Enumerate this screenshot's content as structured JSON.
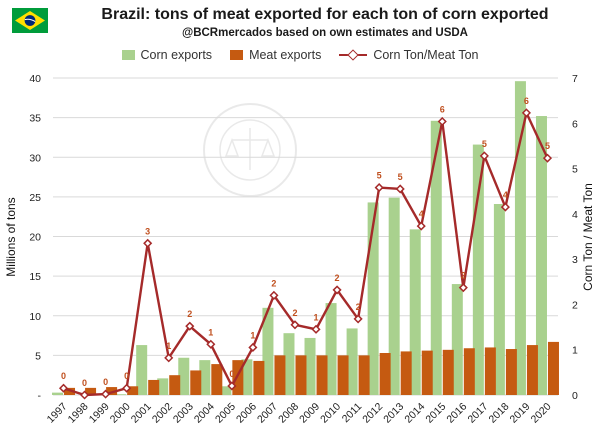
{
  "chart_data": {
    "type": "bar",
    "title": "Brazil: tons of meat exported for each ton of corn exported",
    "subtitle": "@BCRmercados based on own estimates and USDA",
    "ylabel": "Millions of tons",
    "y2label": "Corn Ton / Meat Ton",
    "ylim": [
      0,
      40
    ],
    "y2lim": [
      0,
      7
    ],
    "grid": true,
    "legend_position": "top",
    "categories": [
      "1997",
      "1998",
      "1999",
      "2000",
      "2001",
      "2002",
      "2003",
      "2004",
      "2005",
      "2006",
      "2007",
      "2008",
      "2009",
      "2010",
      "2011",
      "2012",
      "2013",
      "2014",
      "2015",
      "2016",
      "2017",
      "2018",
      "2019",
      "2020"
    ],
    "series": [
      {
        "name": "Corn exports",
        "kind": "bar",
        "color": "#a9d18e",
        "values": [
          0.3,
          0.0,
          0.1,
          0.1,
          6.3,
          2.1,
          4.7,
          4.4,
          1.1,
          4.5,
          11.0,
          7.8,
          7.2,
          11.6,
          8.4,
          24.3,
          24.9,
          20.9,
          34.6,
          14.0,
          31.6,
          24.1,
          39.6,
          35.2
        ]
      },
      {
        "name": "Meat exports",
        "kind": "bar",
        "color": "#c55a11",
        "values": [
          0.9,
          0.9,
          1.0,
          1.1,
          1.9,
          2.5,
          3.1,
          3.9,
          4.4,
          4.3,
          5.0,
          5.0,
          5.0,
          5.0,
          5.0,
          5.3,
          5.5,
          5.6,
          5.7,
          5.9,
          6.0,
          5.8,
          6.3,
          6.7
        ]
      },
      {
        "name": "Corn Ton/Meat Ton",
        "kind": "line",
        "axis": "right",
        "color": "#a52a2a",
        "values": [
          0.15,
          0.0,
          0.02,
          0.15,
          3.35,
          0.82,
          1.52,
          1.12,
          0.2,
          1.05,
          2.2,
          1.55,
          1.45,
          2.32,
          1.68,
          4.58,
          4.55,
          3.73,
          6.04,
          2.37,
          5.28,
          4.15,
          6.23,
          5.23
        ]
      }
    ],
    "point_labels": [
      "0",
      "0",
      "0",
      "0",
      "3",
      "1",
      "2",
      "1",
      "0",
      "1",
      "2",
      "2",
      "1",
      "2",
      "2",
      "5",
      "5",
      "4",
      "6",
      "2",
      "5",
      "4",
      "6",
      "5"
    ],
    "colors": {
      "corn": "#a9d18e",
      "meat": "#c55a11",
      "line": "#a52a2a",
      "labels": "#c0501f",
      "grid": "#d9d9d9"
    },
    "flag": "brazil-flag-icon",
    "watermark": "BOLSA DE COMERCIO DE ROSARIO"
  }
}
